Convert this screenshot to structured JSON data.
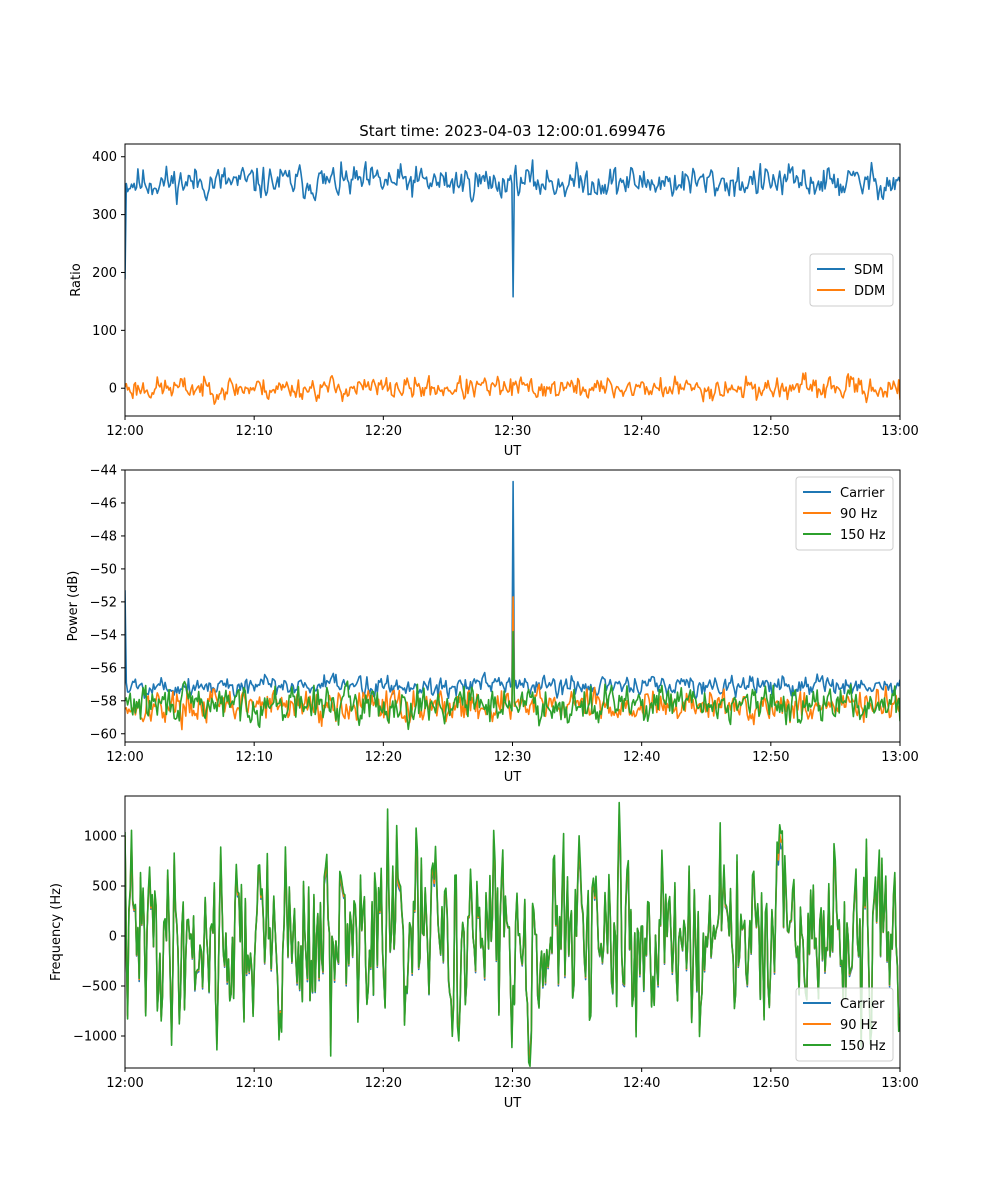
{
  "figure": {
    "suptitle": "Start time: 2023-04-03 12:00:01.699476"
  },
  "colors": {
    "blue": "#1f77b4",
    "orange": "#ff7f0e",
    "green": "#2ca02c"
  },
  "chart_data": [
    {
      "type": "line",
      "title": "Start time: 2023-04-03 12:00:01.699476",
      "xlabel": "UT",
      "ylabel": "Ratio",
      "xlim": [
        0,
        60
      ],
      "ylim": [
        -48,
        422
      ],
      "x_ticks": [
        0,
        10,
        20,
        30,
        40,
        50,
        60
      ],
      "x_tick_labels": [
        "12:00",
        "12:10",
        "12:20",
        "12:30",
        "12:40",
        "12:50",
        "13:00"
      ],
      "y_ticks": [
        0,
        100,
        200,
        300,
        400
      ],
      "y_tick_labels": [
        "0",
        "100",
        "200",
        "300",
        "400"
      ],
      "legend_position": "center-right",
      "series": [
        {
          "name": "SDM",
          "color": "#1f77b4",
          "base": 356,
          "amp": 13,
          "start": 188,
          "anomalies": [
            {
              "x": 30.05,
              "y": 158
            }
          ],
          "seed": 11
        },
        {
          "name": "DDM",
          "color": "#ff7f0e",
          "base": 0,
          "amp": 9,
          "start": 2,
          "end": -20,
          "anomalies": [],
          "seed": 23
        }
      ]
    },
    {
      "type": "line",
      "xlabel": "UT",
      "ylabel": "Power (dB)",
      "xlim": [
        0,
        60
      ],
      "ylim": [
        -60.5,
        -44
      ],
      "x_ticks": [
        0,
        10,
        20,
        30,
        40,
        50,
        60
      ],
      "x_tick_labels": [
        "12:00",
        "12:10",
        "12:20",
        "12:30",
        "12:40",
        "12:50",
        "13:00"
      ],
      "y_ticks": [
        -60,
        -58,
        -56,
        -54,
        -52,
        -50,
        -48,
        -46,
        -44
      ],
      "y_tick_labels": [
        "−60",
        "−58",
        "−56",
        "−54",
        "−52",
        "−50",
        "−48",
        "−46",
        "−44"
      ],
      "legend_position": "top-right",
      "series": [
        {
          "name": "Carrier",
          "color": "#1f77b4",
          "base": -57.1,
          "amp": 0.3,
          "start": -51.3,
          "anomalies": [
            {
              "x": 30.05,
              "y": -44.7
            }
          ],
          "seed": 5
        },
        {
          "name": "90 Hz",
          "color": "#ff7f0e",
          "base": -58.3,
          "amp": 0.45,
          "start": -58.5,
          "anomalies": [
            {
              "x": 30.05,
              "y": -51.7
            }
          ],
          "seed": 17
        },
        {
          "name": "150 Hz",
          "color": "#2ca02c",
          "base": -58.2,
          "amp": 0.5,
          "start": -58.0,
          "anomalies": [
            {
              "x": 30.05,
              "y": -53.8
            }
          ],
          "seed": 29
        }
      ]
    },
    {
      "type": "line",
      "xlabel": "UT",
      "ylabel": "Frequency (Hz)",
      "xlim": [
        0,
        60
      ],
      "ylim": [
        -1320,
        1400
      ],
      "x_ticks": [
        0,
        10,
        20,
        30,
        40,
        50,
        60
      ],
      "x_tick_labels": [
        "12:00",
        "12:10",
        "12:20",
        "12:30",
        "12:40",
        "12:50",
        "13:00"
      ],
      "y_ticks": [
        -1000,
        -500,
        0,
        500,
        1000
      ],
      "y_tick_labels": [
        "−1000",
        "−500",
        "0",
        "500",
        "1000"
      ],
      "legend_position": "bottom-right",
      "series": [
        {
          "name": "Carrier",
          "color": "#1f77b4",
          "base": -10,
          "amp": 430,
          "start": 1000,
          "anomalies": [
            {
              "x": 15.9,
              "y": -1200
            },
            {
              "x": 20.3,
              "y": 1270
            }
          ],
          "seed": 41,
          "coupled": true,
          "scale": 0.82,
          "offset": -110
        },
        {
          "name": "90 Hz",
          "color": "#ff7f0e",
          "base": -10,
          "amp": 430,
          "start": 1000,
          "anomalies": [
            {
              "x": 15.9,
              "y": -1200
            },
            {
              "x": 20.3,
              "y": 1270
            }
          ],
          "seed": 41,
          "coupled": true,
          "scale": 0.9,
          "offset": -55
        },
        {
          "name": "150 Hz",
          "color": "#2ca02c",
          "base": -10,
          "amp": 430,
          "start": 1040,
          "anomalies": [
            {
              "x": 15.9,
              "y": -1200
            },
            {
              "x": 20.3,
              "y": 1270
            }
          ],
          "seed": 41,
          "coupled": true,
          "scale": 1.0,
          "offset": 0
        }
      ]
    }
  ]
}
